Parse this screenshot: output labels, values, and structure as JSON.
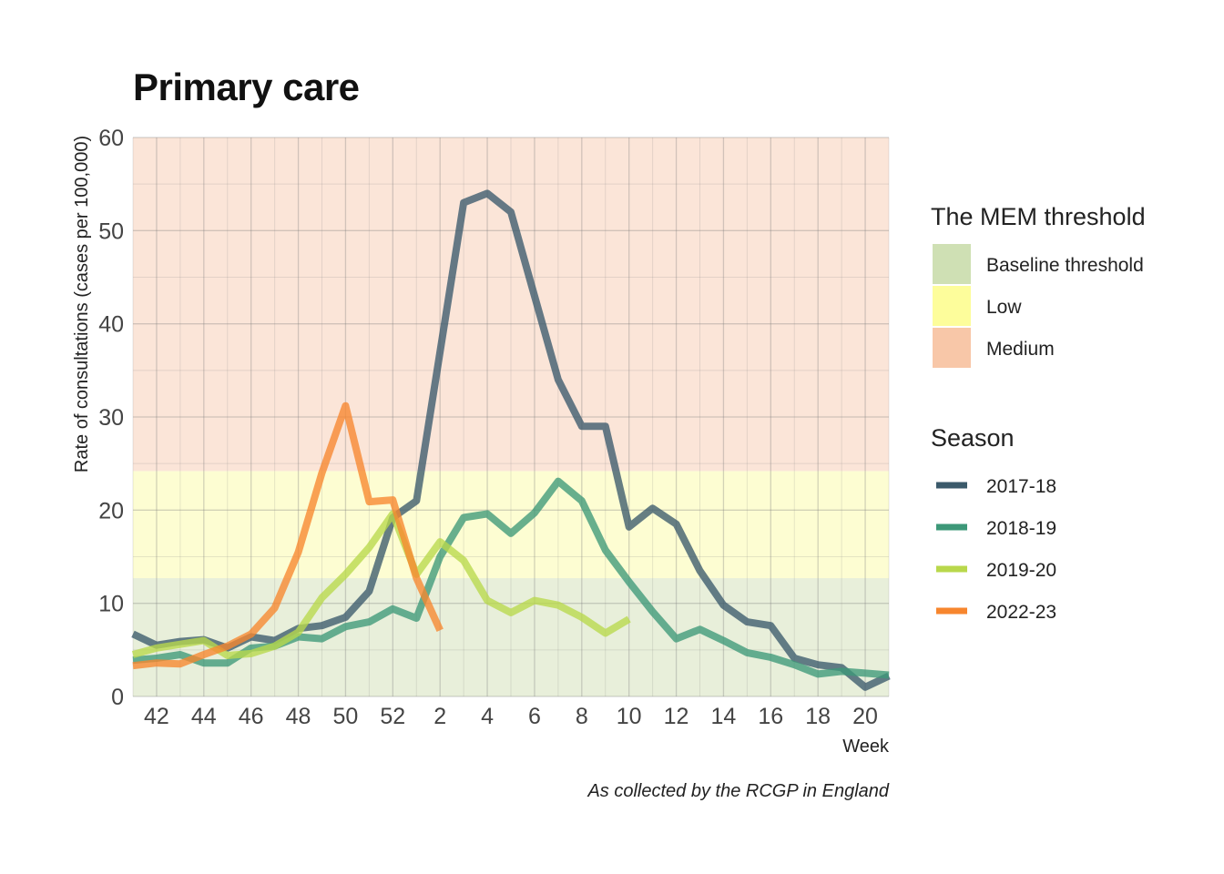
{
  "title": "Primary care",
  "caption": "As collected by the RCGP in England",
  "chart_data": {
    "type": "line",
    "title": "Primary care",
    "xlabel": "Week",
    "ylabel": "Rate of consultations (cases per 100,000)",
    "ylim": [
      0,
      60
    ],
    "yticks": [
      0,
      10,
      20,
      30,
      40,
      50,
      60
    ],
    "x": [
      "41",
      "42",
      "43",
      "44",
      "45",
      "46",
      "47",
      "48",
      "49",
      "50",
      "51",
      "52",
      "1",
      "2",
      "3",
      "4",
      "5",
      "6",
      "7",
      "8",
      "9",
      "10",
      "11",
      "12",
      "13",
      "14",
      "15",
      "16",
      "17",
      "18",
      "19",
      "20",
      "21"
    ],
    "xtick_labels": [
      "42",
      "44",
      "46",
      "48",
      "50",
      "52",
      "2",
      "4",
      "6",
      "8",
      "10",
      "12",
      "14",
      "16",
      "18",
      "20"
    ],
    "grid": true,
    "legend_placement": "right",
    "threshold_legend": {
      "title": "The MEM threshold",
      "bands": [
        {
          "label": "Baseline threshold",
          "from": 0,
          "to": 12.7,
          "color": "#cfe0b4",
          "fill": "#e8efda"
        },
        {
          "label": "Low",
          "from": 12.7,
          "to": 24.2,
          "color": "#fdfd9b",
          "fill": "#fdfdd2"
        },
        {
          "label": "Medium",
          "from": 24.2,
          "to": 60,
          "color": "#f8c7a8",
          "fill": "#fbe5d8"
        }
      ]
    },
    "series_legend_title": "Season",
    "series": [
      {
        "name": "2017-18",
        "color": "#3b5a6b",
        "values": [
          6.7,
          5.5,
          5.9,
          6.1,
          5.2,
          6.4,
          6.0,
          7.3,
          7.6,
          8.5,
          11.3,
          19.2,
          21.0,
          37.0,
          53.0,
          54.0,
          52.0,
          43.0,
          34.0,
          29.0,
          29.0,
          18.2,
          20.2,
          18.5,
          13.5,
          9.8,
          8.0,
          7.6,
          4.1,
          3.4,
          3.1,
          1.0,
          2.2
        ]
      },
      {
        "name": "2018-19",
        "color": "#3d9878",
        "values": [
          3.9,
          4.1,
          4.5,
          3.6,
          3.6,
          5.2,
          5.4,
          6.4,
          6.2,
          7.5,
          8.0,
          9.4,
          8.4,
          15.0,
          19.2,
          19.6,
          17.5,
          19.7,
          23.1,
          21.0,
          15.7,
          12.3,
          9.1,
          6.2,
          7.2,
          6.0,
          4.7,
          4.2,
          3.4,
          2.4,
          2.7,
          2.5,
          2.3
        ]
      },
      {
        "name": "2019-20",
        "color": "#b9d84c",
        "values": [
          4.5,
          5.2,
          5.6,
          6.0,
          4.4,
          4.6,
          5.4,
          6.9,
          10.6,
          13.1,
          16.0,
          19.6,
          13.1,
          16.6,
          14.6,
          10.3,
          9.0,
          10.3,
          9.8,
          8.5,
          6.8,
          8.3,
          null,
          null,
          null,
          null,
          null,
          null,
          null,
          null,
          null,
          null,
          null
        ]
      },
      {
        "name": "2022-23",
        "color": "#f7862e",
        "values": [
          3.3,
          3.6,
          3.5,
          4.5,
          5.4,
          6.7,
          9.5,
          15.5,
          24.0,
          31.2,
          20.9,
          21.1,
          12.7,
          7.1,
          null,
          null,
          null,
          null,
          null,
          null,
          null,
          null,
          null,
          null,
          null,
          null,
          null,
          null,
          null,
          null,
          null,
          null,
          null
        ]
      }
    ]
  }
}
